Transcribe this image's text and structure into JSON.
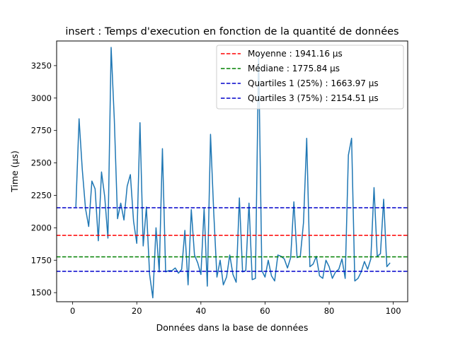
{
  "chart_data": {
    "type": "line",
    "title": "insert : Temps d'execution en fonction de la quantité de données",
    "xlabel": "Données dans la base de données",
    "ylabel": "Time (µs)",
    "xlim": [
      -5,
      104.5
    ],
    "ylim": [
      1430,
      3440
    ],
    "xticks": [
      0,
      20,
      40,
      60,
      80,
      100
    ],
    "yticks": [
      1500,
      1750,
      2000,
      2250,
      2500,
      2750,
      3000,
      3250
    ],
    "grid": false,
    "legend_position": "top-right",
    "series": [
      {
        "color": "#1f77b4",
        "x": [
          1,
          2,
          3,
          4,
          5,
          6,
          7,
          8,
          9,
          10,
          11,
          12,
          13,
          14,
          15,
          16,
          17,
          18,
          19,
          20,
          21,
          22,
          23,
          24,
          25,
          26,
          27,
          28,
          29,
          30,
          31,
          32,
          33,
          34,
          35,
          36,
          37,
          38,
          39,
          40,
          41,
          42,
          43,
          44,
          45,
          46,
          47,
          48,
          49,
          50,
          51,
          52,
          53,
          54,
          55,
          56,
          57,
          58,
          59,
          60,
          61,
          62,
          63,
          64,
          65,
          66,
          67,
          68,
          69,
          70,
          71,
          72,
          73,
          74,
          75,
          76,
          77,
          78,
          79,
          80,
          81,
          82,
          83,
          84,
          85,
          86,
          87,
          88,
          89,
          90,
          91,
          92,
          93,
          94,
          95,
          96,
          97,
          98,
          99
        ],
        "y": [
          2160,
          2840,
          2450,
          2150,
          2010,
          2360,
          2300,
          1900,
          2430,
          2240,
          1920,
          3390,
          2830,
          2070,
          2190,
          2060,
          2320,
          2410,
          2050,
          1880,
          2810,
          1860,
          2160,
          1640,
          1460,
          2000,
          1660,
          2610,
          1660,
          1670,
          1670,
          1690,
          1650,
          1680,
          1980,
          1560,
          2140,
          1790,
          1730,
          1640,
          2150,
          1550,
          2720,
          2120,
          1620,
          1750,
          1560,
          1620,
          1790,
          1640,
          1580,
          2230,
          1660,
          1670,
          2190,
          1600,
          1610,
          3340,
          1670,
          1620,
          1750,
          1630,
          1590,
          1790,
          1780,
          1760,
          1690,
          1770,
          2200,
          1770,
          1780,
          2040,
          2690,
          1700,
          1720,
          1780,
          1630,
          1610,
          1750,
          1700,
          1610,
          1660,
          1680,
          1760,
          1610,
          2560,
          2690,
          1590,
          1610,
          1660,
          1740,
          1680,
          1760,
          2310,
          1780,
          1800,
          2220,
          1700,
          1730
        ]
      }
    ],
    "reference_lines": [
      {
        "label": "Moyenne : 1941.16 µs",
        "value": 1941.16,
        "color": "#ff0000"
      },
      {
        "label": "Médiane : 1775.84 µs",
        "value": 1775.84,
        "color": "#008000"
      },
      {
        "label": "Quartiles 1 (25%) : 1663.97 µs",
        "value": 1663.97,
        "color": "#0000cc"
      },
      {
        "label": "Quartiles 3 (75%) : 2154.51 µs",
        "value": 2154.51,
        "color": "#0000cc"
      }
    ]
  }
}
